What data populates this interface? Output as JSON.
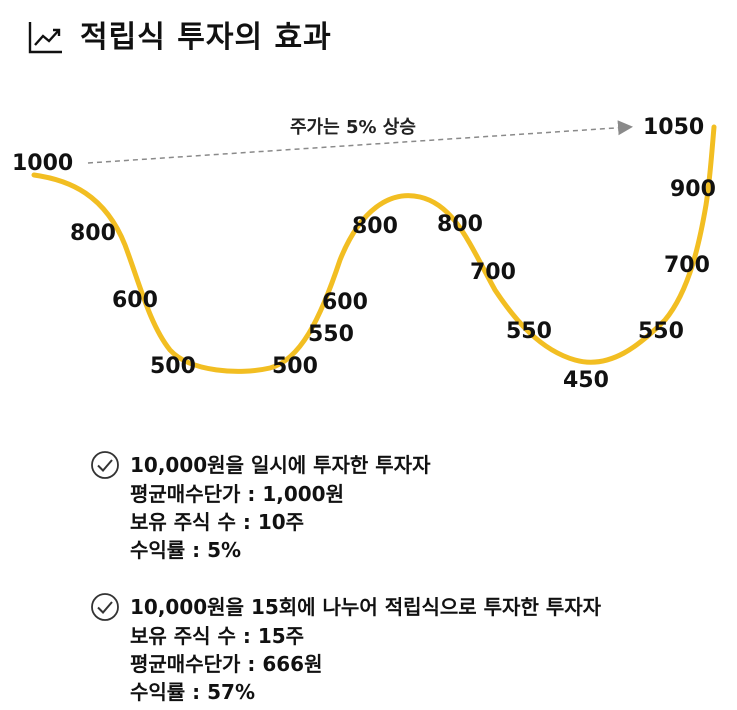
{
  "header": {
    "title": "적립식 투자의 효과",
    "icon": "trend-chart-icon"
  },
  "chart_data": {
    "type": "line",
    "color": "#F2BE22",
    "annotation": "주가는 5% 상승",
    "points": [
      {
        "label": "1000",
        "value": 1000
      },
      {
        "label": "800",
        "value": 800
      },
      {
        "label": "600",
        "value": 600
      },
      {
        "label": "500",
        "value": 500
      },
      {
        "label": "500",
        "value": 500
      },
      {
        "label": "550",
        "value": 550
      },
      {
        "label": "600",
        "value": 600
      },
      {
        "label": "800",
        "value": 800
      },
      {
        "label": "800",
        "value": 800
      },
      {
        "label": "700",
        "value": 700
      },
      {
        "label": "550",
        "value": 550
      },
      {
        "label": "450",
        "value": 450
      },
      {
        "label": "550",
        "value": 550
      },
      {
        "label": "700",
        "value": 700
      },
      {
        "label": "900",
        "value": 900
      },
      {
        "label": "1050",
        "value": 1050
      }
    ]
  },
  "cases": [
    {
      "icon": "check-circle-icon",
      "heading": "10,000원을 일시에 투자한 투자자",
      "lines": [
        "평균매수단가 : 1,000원",
        "보유 주식 수 : 10주",
        "수익률 : 5%"
      ]
    },
    {
      "icon": "check-circle-icon",
      "heading": "10,000원을 15회에 나누어 적립식으로 투자한 투자자",
      "lines": [
        "보유 주식 수 : 15주",
        "평균매수단가 : 666원",
        "수익률 : 57%"
      ]
    }
  ]
}
